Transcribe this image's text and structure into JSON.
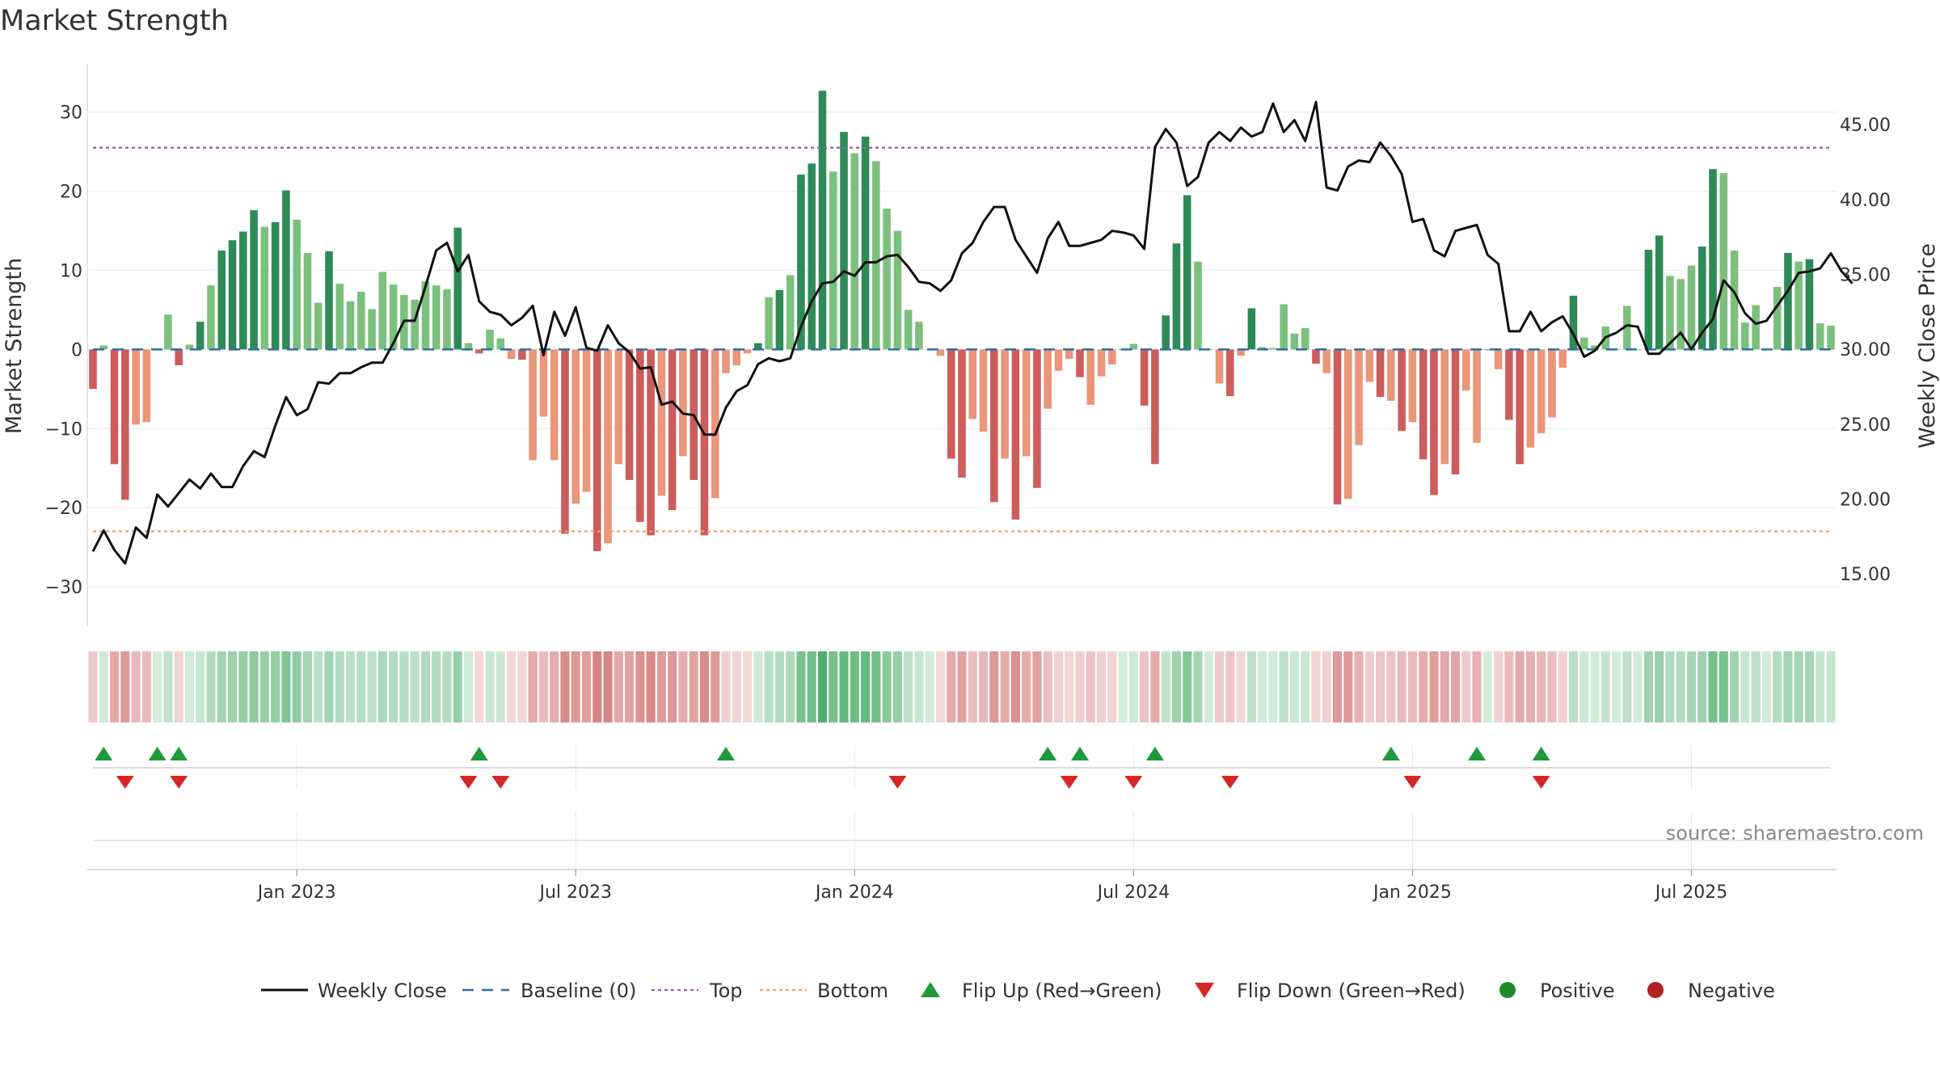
{
  "title": "Market Strength",
  "source": "source: sharemaestro.com",
  "colors": {
    "dark_green": "#2e8b57",
    "light_green": "#7cc07e",
    "dark_red": "#cd5c5c",
    "light_red": "#e9967a",
    "top_line": "#9b59b6",
    "bottom_line": "#f0a060",
    "baseline": "#2f6f9f",
    "price": "#111111",
    "flip_up": "#1e9a3c",
    "flip_down": "#d62728",
    "positive": "#1f8a2e",
    "negative": "#b22222"
  },
  "chart_data": {
    "type": "bar",
    "y_left_label": "Market Strength",
    "y_right_label": "Weekly Close Price",
    "ylim_left": [
      -35,
      36
    ],
    "ylim_right": [
      11.5,
      49
    ],
    "left_ticks": [
      30,
      20,
      10,
      0,
      -10,
      -20,
      -30
    ],
    "left_tick_labels": [
      "30",
      "20",
      "10",
      "0",
      "−10",
      "−20",
      "−30"
    ],
    "right_ticks": [
      45,
      40,
      35,
      30,
      25,
      20,
      15
    ],
    "right_tick_labels": [
      "45.00",
      "40.00",
      "35.00",
      "30.00",
      "25.00",
      "20.00",
      "15.00"
    ],
    "x_tick_labels": [
      "Jan 2023",
      "Jul 2023",
      "Jan 2024",
      "Jul 2024",
      "Jan 2025",
      "Jul 2025"
    ],
    "x_tick_weeks": [
      19,
      45,
      71,
      97,
      123,
      149
    ],
    "top_level": 25.5,
    "bottom_level": -23,
    "legend": [
      "Weekly Close",
      "Baseline (0)",
      "Top",
      "Bottom",
      "Flip Up (Red→Green)",
      "Flip Down (Green→Red)",
      "Positive",
      "Negative"
    ],
    "strength": [
      -5,
      0.5,
      -14.5,
      -19,
      -9.5,
      -9.2,
      0,
      4.4,
      -2,
      0.6,
      3.5,
      8.1,
      12.5,
      13.8,
      14.9,
      17.6,
      15.5,
      16.1,
      20.1,
      16.4,
      12.2,
      5.9,
      12.4,
      8.3,
      6.1,
      7.3,
      5.1,
      9.8,
      8.2,
      6.9,
      6.3,
      8.6,
      8.1,
      7.6,
      15.4,
      0.8,
      -0.5,
      2.5,
      1.4,
      -1.2,
      -1.3,
      -14,
      -8.5,
      -14,
      -23.3,
      -19.5,
      -18,
      -25.5,
      -24.5,
      -14.5,
      -16.5,
      -21.8,
      -23.5,
      -18.5,
      -20.3,
      -13.5,
      -16.5,
      -23.5,
      -18.8,
      -3,
      -2,
      -0.5,
      0.8,
      6.6,
      7.5,
      9.4,
      22.1,
      23.5,
      32.7,
      22.5,
      27.5,
      24.8,
      26.9,
      23.8,
      17.8,
      15,
      5,
      3.5,
      0,
      -0.8,
      -13.8,
      -16.2,
      -8.8,
      -10.4,
      -19.3,
      -13.8,
      -21.5,
      -13.5,
      -17.5,
      -7.5,
      -2.7,
      -1.2,
      -3.5,
      -7,
      -3.4,
      -1.9,
      0,
      0.7,
      -7.1,
      -14.5,
      4.3,
      13.4,
      19.5,
      11.1,
      0,
      -4.3,
      -5.9,
      -0.8,
      5.2,
      0.3,
      0.2,
      5.7,
      2,
      2.7,
      -1.8,
      -3,
      -19.6,
      -18.9,
      -12.1,
      -4.1,
      -6,
      -6.5,
      -10.3,
      -9.2,
      -13.9,
      -18.4,
      -14.5,
      -15.8,
      -5.2,
      -11.8,
      0,
      -2.5,
      -8.9,
      -14.5,
      -12.4,
      -10.6,
      -8.6,
      -2.3,
      6.8,
      1.5,
      0.5,
      2.9,
      0,
      5.5,
      0,
      12.6,
      14.4,
      9.3,
      8.9,
      10.6,
      13,
      22.8,
      22.3,
      12.5,
      3.4,
      5.6,
      0,
      7.9,
      12.2,
      11.1,
      11.4,
      3.3,
      3
    ],
    "weekly_close": [
      16.5,
      17.9,
      16.6,
      15.7,
      18.1,
      17.4,
      20.3,
      19.5,
      20.4,
      21.3,
      20.7,
      21.7,
      20.8,
      20.8,
      22.2,
      23.2,
      22.8,
      24.9,
      26.8,
      25.6,
      26,
      27.8,
      27.7,
      28.4,
      28.4,
      28.8,
      29.1,
      29.1,
      30.4,
      31.9,
      31.9,
      34.2,
      36.6,
      37.1,
      35.2,
      36.3,
      33.2,
      32.5,
      32.3,
      31.6,
      32.1,
      32.9,
      29.6,
      32.5,
      30.9,
      32.8,
      30.1,
      29.9,
      31.6,
      30.4,
      29.8,
      28.7,
      28.8,
      26.3,
      26.5,
      25.7,
      25.6,
      24.3,
      24.3,
      26.1,
      27.2,
      27.6,
      29,
      29.4,
      29.2,
      29.4,
      31.5,
      33.2,
      34.4,
      34.5,
      35.2,
      34.9,
      35.8,
      35.8,
      36.2,
      36.3,
      35.5,
      34.5,
      34.4,
      33.9,
      34.6,
      36.4,
      37.1,
      38.5,
      39.5,
      39.5,
      37.3,
      36.2,
      35.1,
      37.4,
      38.5,
      36.9,
      36.9,
      37.1,
      37.3,
      37.9,
      37.8,
      37.6,
      36.7,
      43.5,
      44.7,
      43.8,
      40.9,
      41.5,
      43.8,
      44.5,
      43.9,
      44.8,
      44.2,
      44.5,
      46.4,
      44.5,
      45.3,
      43.9,
      46.5,
      40.8,
      40.6,
      42.2,
      42.6,
      42.5,
      43.8,
      42.9,
      41.7,
      38.5,
      38.7,
      36.6,
      36.2,
      37.9,
      38.1,
      38.3,
      36.3,
      35.7,
      31.2,
      31.2,
      32.5,
      31.2,
      31.8,
      32.2,
      31,
      29.5,
      29.9,
      30.8,
      31.1,
      31.6,
      31.5,
      29.7,
      29.7,
      30.4,
      31.1,
      30,
      31.1,
      32,
      34.6,
      33.8,
      32.4,
      31.7,
      31.9,
      32.9,
      33.9,
      35.1,
      35.2,
      35.4,
      36.4,
      35.2,
      34.4
    ],
    "flip_up_weeks": [
      1,
      6,
      8,
      36,
      59,
      89,
      92,
      99,
      121,
      129,
      135
    ],
    "flip_down_weeks": [
      3,
      8,
      35,
      38,
      75,
      91,
      97,
      106,
      123,
      135
    ]
  }
}
